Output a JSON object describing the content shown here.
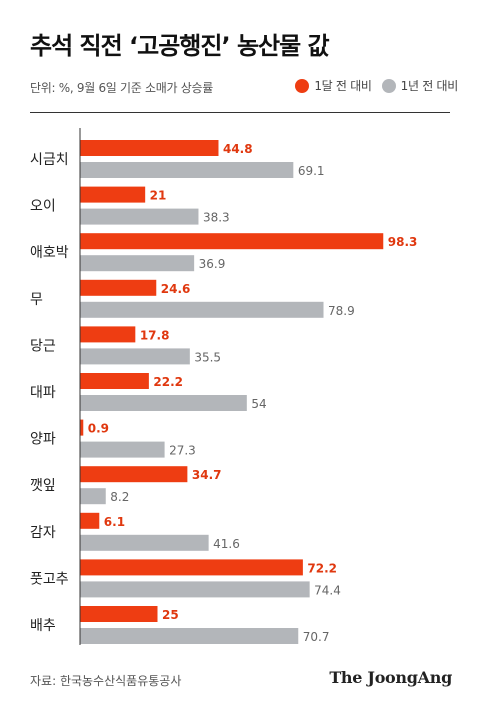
{
  "header": {
    "title": "추석 직전 ‘고공행진’ 농산물 값",
    "subtitle": "단위: %, 9월 6일 기준 소매가 상승률"
  },
  "footer": {
    "source": "자료: 한국농수산식품유통공사",
    "logo": "The JoongAng"
  },
  "colors": {
    "month": "#ee3d12",
    "year": "#b3b6ba",
    "month_text": "#e0380f",
    "year_text": "#666666"
  },
  "chart_data": {
    "type": "bar",
    "orientation": "horizontal",
    "title": "추석 직전 ‘고공행진’ 농산물 값",
    "subtitle": "단위: %, 9월 6일 기준 소매가 상승률",
    "legend_position": "top-right",
    "grid": false,
    "xlim": [
      0,
      100
    ],
    "categories": [
      "시금치",
      "오이",
      "애호박",
      "무",
      "당근",
      "대파",
      "양파",
      "깻잎",
      "감자",
      "풋고추",
      "배추"
    ],
    "series": [
      {
        "name": "1달 전 대비",
        "values": [
          44.8,
          21,
          98.3,
          24.6,
          17.8,
          22.2,
          0.9,
          34.7,
          6.1,
          72.2,
          25
        ]
      },
      {
        "name": "1년 전 대비",
        "values": [
          69.1,
          38.3,
          36.9,
          78.9,
          35.5,
          54,
          27.3,
          8.2,
          41.6,
          74.4,
          70.7
        ]
      }
    ],
    "value_labels": [
      [
        "44.8",
        "21",
        "98.3",
        "24.6",
        "17.8",
        "22.2",
        "0.9",
        "34.7",
        "6.1",
        "72.2",
        "25"
      ],
      [
        "69.1",
        "38.3",
        "36.9",
        "78.9",
        "35.5",
        "54",
        "27.3",
        "8.2",
        "41.6",
        "74.4",
        "70.7"
      ]
    ]
  }
}
